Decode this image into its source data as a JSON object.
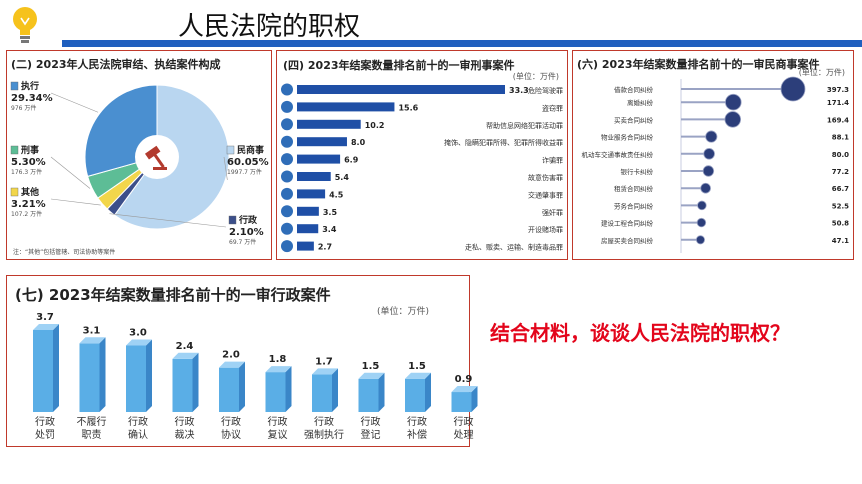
{
  "slide": {
    "title": "人民法院的职权",
    "question": "结合材料，谈谈人民法院的职权？",
    "colors": {
      "accent_bar": "#1f5fbf",
      "panel_border": "#c0392b",
      "question": "#e3051b"
    }
  },
  "chart_data": [
    {
      "type": "pie",
      "title": "(二) 2023年人民法院审结、执结案件构成",
      "slices": [
        {
          "label": "民商事",
          "percent": 60.05,
          "cases": "1997.7 万件",
          "color": "#b9d6f0"
        },
        {
          "label": "行政",
          "percent": 2.1,
          "cases": "69.7 万件",
          "color": "#3c4f8a"
        },
        {
          "label": "其他",
          "percent": 3.21,
          "cases": "107.2 万件",
          "color": "#f2d64b"
        },
        {
          "label": "刑事",
          "percent": 5.3,
          "cases": "176.3 万件",
          "color": "#5dbd96"
        },
        {
          "label": "执行",
          "percent": 29.34,
          "cases": "976 万件",
          "color": "#4a8fd0"
        }
      ],
      "footnote": "注：“其他”包括管辖、司法协助等案件"
    },
    {
      "type": "bar",
      "orientation": "horizontal",
      "title": "(四) 2023年结案数量排名前十的一审刑事案件",
      "unit": "(单位：万件)",
      "categories": [
        "危险驾驶罪",
        "盗窃罪",
        "帮助信息网络犯罪活动罪",
        "掩饰、隐瞒犯罪所得、犯罪所得收益罪",
        "诈骗罪",
        "故意伤害罪",
        "交通肇事罪",
        "强奸罪",
        "开设赌场罪",
        "走私、贩卖、运输、制造毒品罪"
      ],
      "values": [
        33.3,
        15.6,
        10.2,
        8.0,
        6.9,
        5.4,
        4.5,
        3.5,
        3.4,
        2.7
      ],
      "value_labels": [
        "33.3",
        "15.6",
        "10.2",
        "8.0",
        "6.9",
        "5.4",
        "4.5",
        "3.5",
        "3.4",
        "2.7"
      ],
      "xlim": [
        0,
        33.3
      ],
      "color": "#1f4fa6"
    },
    {
      "type": "scatter",
      "style": "lollipop",
      "title": "(六) 2023年结案数量排名前十的一审民商事案件",
      "unit": "(单位：万件)",
      "categories": [
        "借款合同纠纷",
        "离婚纠纷",
        "买卖合同纠纷",
        "物业服务合同纠纷",
        "机动车交通事故责任纠纷",
        "银行卡纠纷",
        "租赁合同纠纷",
        "劳务合同纠纷",
        "建设工程合同纠纷",
        "房屋买卖合同纠纷"
      ],
      "values": [
        397.3,
        171.4,
        169.4,
        88.1,
        80.0,
        77.2,
        66.7,
        52.5,
        50.8,
        47.1
      ],
      "value_labels": [
        "397.3",
        "171.4",
        "169.4",
        "88.1",
        "80.0",
        "77.2",
        "66.7",
        "52.5",
        "50.8",
        "47.1"
      ],
      "color": "#2c3e7a"
    },
    {
      "type": "bar",
      "title": "(七) 2023年结案数量排名前十的一审行政案件",
      "unit": "(单位：万件)",
      "categories": [
        "行政处罚",
        "不履行职责",
        "行政确认",
        "行政裁决",
        "行政协议",
        "行政复议",
        "行政强制执行",
        "行政登记",
        "行政补偿",
        "行政处理"
      ],
      "category_lines": [
        [
          "行政",
          "处罚"
        ],
        [
          "不履行",
          "职责"
        ],
        [
          "行政",
          "确认"
        ],
        [
          "行政",
          "裁决"
        ],
        [
          "行政",
          "协议"
        ],
        [
          "行政",
          "复议"
        ],
        [
          "行政",
          "强制执行"
        ],
        [
          "行政",
          "登记"
        ],
        [
          "行政",
          "补偿"
        ],
        [
          "行政",
          "处理"
        ]
      ],
      "values": [
        3.7,
        3.1,
        3.0,
        2.4,
        2.0,
        1.8,
        1.7,
        1.5,
        1.5,
        0.9
      ],
      "value_labels": [
        "3.7",
        "3.1",
        "3.0",
        "2.4",
        "2.0",
        "1.8",
        "1.7",
        "1.5",
        "1.5",
        "0.9"
      ],
      "ylim": [
        0,
        3.7
      ],
      "color": "#5aaee6"
    }
  ]
}
